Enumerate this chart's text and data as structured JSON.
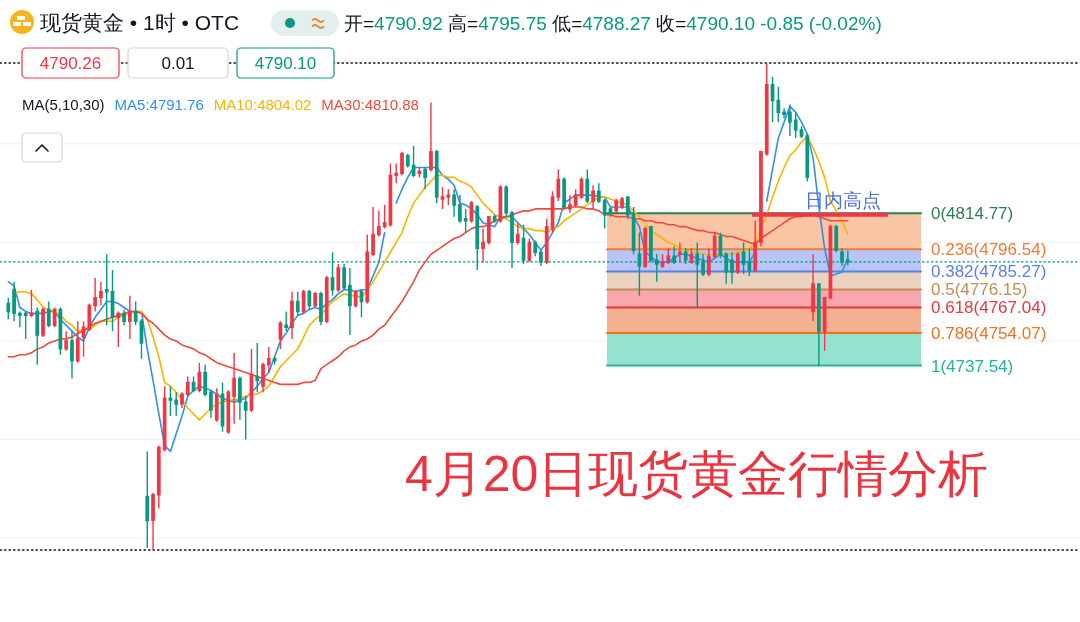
{
  "chart_data": {
    "type": "candlestick",
    "title": "4月20日现货黄金行情分析",
    "subtitle": "现货黄金 • 1时 • OTC",
    "annotations": [
      "开=4790.92 高=4795.75 低=4788.27 收=4790.10 -0.85 (-0.02%)",
      "4790.26",
      "0.01",
      "4790.10",
      "MA(5,10,30)",
      {
        "text": "日内高点",
        "y": 4814
      }
    ],
    "categories": [
      null,
      null,
      null,
      null,
      null,
      null,
      null,
      null,
      null,
      null,
      null,
      null,
      null,
      null,
      null,
      null,
      null,
      null,
      null,
      null,
      null,
      null,
      null,
      null,
      null,
      null,
      null,
      null,
      null,
      null,
      null,
      null,
      null,
      null,
      null,
      null,
      null,
      null,
      null,
      null,
      null,
      null,
      null,
      null,
      null,
      null,
      null,
      null,
      null,
      null,
      null,
      null,
      null,
      null,
      null,
      null,
      null,
      null,
      null,
      null,
      null,
      null,
      null,
      null,
      null,
      null,
      null,
      null,
      null,
      null,
      null,
      null,
      null,
      null,
      null,
      null,
      null,
      null,
      null,
      null,
      null,
      null,
      null,
      null,
      null,
      null,
      null,
      null,
      null,
      null,
      null,
      null,
      null,
      null,
      null,
      null,
      null,
      null,
      null,
      null,
      null,
      null,
      null,
      null,
      null,
      null,
      null,
      null,
      null,
      null,
      null,
      null,
      null,
      null,
      null,
      null,
      null,
      null,
      null,
      null,
      null,
      null,
      null,
      null,
      null,
      null,
      null,
      null,
      null,
      null,
      null,
      null,
      null,
      null,
      null,
      null,
      null,
      null,
      null,
      null,
      null,
      null,
      null,
      null,
      null,
      null
    ],
    "ohlc": [
      [
        4769,
        4772,
        4761,
        4765
      ],
      [
        4776,
        4780,
        4760,
        4764
      ],
      [
        4764,
        4765,
        4757,
        4763
      ],
      [
        4764,
        4765,
        4751,
        4763
      ],
      [
        4763,
        4776,
        4762,
        4764
      ],
      [
        4765,
        4767,
        4738,
        4753
      ],
      [
        4753,
        4767,
        4752,
        4766
      ],
      [
        4766,
        4770,
        4757,
        4758
      ],
      [
        4758,
        4767,
        4757,
        4766
      ],
      [
        4766,
        4767,
        4743,
        4746
      ],
      [
        4746,
        4755,
        4745,
        4750
      ],
      [
        4750,
        4755,
        4731,
        4740
      ],
      [
        4740,
        4760,
        4739,
        4751
      ],
      [
        4752,
        4760,
        4742,
        4757
      ],
      [
        4756,
        4769,
        4755,
        4768
      ],
      [
        4768,
        4782,
        4765,
        4772
      ],
      [
        4772,
        4780,
        4768,
        4775
      ],
      [
        4776,
        4794,
        4758,
        4775
      ],
      [
        4775,
        4786,
        4755,
        4762
      ],
      [
        4762,
        4765,
        4747,
        4764
      ],
      [
        4764,
        4766,
        4758,
        4760
      ],
      [
        4760,
        4773,
        4751,
        4765
      ],
      [
        4765,
        4770,
        4758,
        4760
      ],
      [
        4760,
        4761,
        4741,
        4749
      ],
      [
        4671,
        4694,
        4645,
        4659
      ],
      [
        4659,
        4673,
        4644,
        4672
      ],
      [
        4672,
        4697,
        4665,
        4696
      ],
      [
        4695,
        4727,
        4694,
        4721
      ],
      [
        4721,
        4727,
        4712,
        4720
      ],
      [
        4720,
        4724,
        4712,
        4718
      ],
      [
        4718,
        4724,
        4716,
        4723
      ],
      [
        4723,
        4732,
        4722,
        4729
      ],
      [
        4729,
        4732,
        4724,
        4725
      ],
      [
        4725,
        4739,
        4724,
        4734
      ],
      [
        4734,
        4738,
        4722,
        4723
      ],
      [
        4724,
        4725,
        4711,
        4715
      ],
      [
        4710,
        4726,
        4709,
        4723
      ],
      [
        4723,
        4729,
        4704,
        4707
      ],
      [
        4704,
        4725,
        4703,
        4724
      ],
      [
        4722,
        4744,
        4708,
        4731
      ],
      [
        4731,
        4732,
        4710,
        4719
      ],
      [
        4719,
        4722,
        4700,
        4715
      ],
      [
        4715,
        4746,
        4714,
        4733
      ],
      [
        4732,
        4749,
        4724,
        4730
      ],
      [
        4727,
        4739,
        4724,
        4738
      ],
      [
        4738,
        4747,
        4734,
        4741
      ],
      [
        4741,
        4742,
        4738,
        4740
      ],
      [
        4751,
        4760,
        4746,
        4759
      ],
      [
        4758,
        4765,
        4755,
        4757
      ],
      [
        4757,
        4775,
        4751,
        4770
      ],
      [
        4770,
        4775,
        4763,
        4765
      ],
      [
        4765,
        4776,
        4764,
        4775
      ],
      [
        4775,
        4776,
        4766,
        4768
      ],
      [
        4768,
        4775,
        4767,
        4774
      ],
      [
        4774,
        4775,
        4758,
        4760
      ],
      [
        4760,
        4783,
        4759,
        4782
      ],
      [
        4782,
        4795,
        4773,
        4776
      ],
      [
        4776,
        4789,
        4775,
        4787
      ],
      [
        4787,
        4789,
        4776,
        4777
      ],
      [
        4778,
        4787,
        4753,
        4768
      ],
      [
        4768,
        4776,
        4767,
        4775
      ],
      [
        4775,
        4776,
        4762,
        4770
      ],
      [
        4770,
        4804,
        4769,
        4795
      ],
      [
        4794,
        4818,
        4793,
        4804
      ],
      [
        4804,
        4816,
        4803,
        4808
      ],
      [
        4808,
        4819,
        4807,
        4810
      ],
      [
        4809,
        4840,
        4808,
        4834
      ],
      [
        4834,
        4840,
        4830,
        4835
      ],
      [
        4835,
        4846,
        4834,
        4845
      ],
      [
        4844,
        4845,
        4838,
        4839
      ],
      [
        4839,
        4849,
        4833,
        4834
      ],
      [
        4835,
        4838,
        4833,
        4836
      ],
      [
        4837,
        4838,
        4827,
        4833
      ],
      [
        4837,
        4871,
        4836,
        4846
      ],
      [
        4846,
        4847,
        4820,
        4823
      ],
      [
        4822,
        4828,
        4817,
        4823
      ],
      [
        4823,
        4827,
        4819,
        4824
      ],
      [
        4824,
        4827,
        4813,
        4819
      ],
      [
        4819,
        4824,
        4810,
        4811
      ],
      [
        4812,
        4817,
        4805,
        4811
      ],
      [
        4811,
        4821,
        4810,
        4820
      ],
      [
        4818,
        4819,
        4786,
        4797
      ],
      [
        4797,
        4807,
        4790,
        4800
      ],
      [
        4800,
        4813,
        4799,
        4813
      ],
      [
        4813,
        4814,
        4810,
        4811
      ],
      [
        4811,
        4829,
        4810,
        4828
      ],
      [
        4828,
        4829,
        4813,
        4815
      ],
      [
        4815,
        4816,
        4787,
        4800
      ],
      [
        4800,
        4810,
        4799,
        4804
      ],
      [
        4802,
        4809,
        4789,
        4791
      ],
      [
        4791,
        4802,
        4790,
        4800
      ],
      [
        4800,
        4801,
        4793,
        4795
      ],
      [
        4795,
        4796,
        4788,
        4790
      ],
      [
        4790,
        4812,
        4789,
        4808
      ],
      [
        4807,
        4826,
        4805,
        4823
      ],
      [
        4823,
        4837,
        4821,
        4832
      ],
      [
        4832,
        4833,
        4817,
        4818
      ],
      [
        4817,
        4824,
        4815,
        4819
      ],
      [
        4819,
        4827,
        4818,
        4824
      ],
      [
        4823,
        4833,
        4822,
        4832
      ],
      [
        4832,
        4837,
        4820,
        4821
      ],
      [
        4821,
        4829,
        4817,
        4826
      ],
      [
        4826,
        4830,
        4820,
        4821
      ],
      [
        4821,
        4822,
        4807,
        4814
      ],
      [
        4817,
        4818,
        4813,
        4815
      ],
      [
        4816,
        4822,
        4815,
        4821
      ],
      [
        4818,
        4823,
        4817,
        4822
      ],
      [
        4823,
        4823,
        4812,
        4814
      ],
      [
        4814,
        4818,
        4794,
        4796
      ],
      [
        4794,
        4805,
        4773,
        4788
      ],
      [
        4788,
        4808,
        4787,
        4807
      ],
      [
        4808,
        4808,
        4790,
        4791
      ],
      [
        4791,
        4794,
        4780,
        4789
      ],
      [
        4788,
        4794,
        4787,
        4790
      ],
      [
        4790,
        4797,
        4789,
        4793
      ],
      [
        4793,
        4798,
        4789,
        4790
      ],
      [
        4794,
        4800,
        4790,
        4795
      ],
      [
        4795,
        4797,
        4789,
        4791
      ],
      [
        4790,
        4797,
        4789,
        4794
      ],
      [
        4794,
        4800,
        4767,
        4789
      ],
      [
        4790,
        4794,
        4783,
        4784
      ],
      [
        4784,
        4797,
        4783,
        4793
      ],
      [
        4793,
        4805,
        4792,
        4803
      ],
      [
        4803,
        4805,
        4792,
        4794
      ],
      [
        4794,
        4795,
        4779,
        4785
      ],
      [
        4791,
        4795,
        4779,
        4785
      ],
      [
        4785,
        4795,
        4784,
        4794
      ],
      [
        4795,
        4800,
        4784,
        4789
      ],
      [
        4790,
        4797,
        4783,
        4786
      ],
      [
        4786,
        4811,
        4785,
        4800
      ],
      [
        4800,
        4846,
        4798,
        4846
      ],
      [
        4845,
        4891,
        4844,
        4880
      ],
      [
        4880,
        4884,
        4861,
        4872
      ],
      [
        4872,
        4879,
        4861,
        4866
      ],
      [
        4866,
        4868,
        4863,
        4865
      ],
      [
        4866,
        4870,
        4854,
        4861
      ],
      [
        4862,
        4866,
        4853,
        4857
      ],
      [
        4857,
        4859,
        4853,
        4854
      ],
      [
        4854,
        4855,
        4831,
        4833
      ],
      [
        4765,
        4794,
        4760,
        4779
      ],
      [
        4779,
        4779,
        4737.54,
        4755
      ],
      [
        4755,
        4772,
        4745,
        4772
      ],
      [
        4772,
        4809,
        4771,
        4808
      ],
      [
        4808,
        4809,
        4795,
        4796
      ],
      [
        4795,
        4797,
        4788,
        4790
      ],
      [
        4790.92,
        4795.75,
        4788.27,
        4790.1
      ]
    ],
    "colors": [
      "#089981",
      "#089981",
      "#089981",
      "#089981",
      "#f23645",
      "#089981",
      "#f23645",
      "#089981",
      "#f23645",
      "#089981",
      "#f23645",
      "#089981",
      "#f23645",
      "#f23645",
      "#f23645",
      "#f23645",
      "#f23645",
      "#089981",
      "#089981",
      "#f23645",
      "#089981",
      "#f23645",
      "#089981",
      "#089981",
      "#089981",
      "#f23645",
      "#f23645",
      "#f23645",
      "#089981",
      "#089981",
      "#f23645",
      "#f23645",
      "#089981",
      "#f23645",
      "#089981",
      "#089981",
      "#f23645",
      "#089981",
      "#f23645",
      "#f23645",
      "#089981",
      "#089981",
      "#f23645",
      "#089981",
      "#f23645",
      "#f23645",
      "#089981",
      "#f23645",
      "#089981",
      "#f23645",
      "#089981",
      "#f23645",
      "#089981",
      "#f23645",
      "#089981",
      "#f23645",
      "#089981",
      "#f23645",
      "#089981",
      "#089981",
      "#f23645",
      "#089981",
      "#f23645",
      "#f23645",
      "#f23645",
      "#f23645",
      "#f23645",
      "#f23645",
      "#f23645",
      "#089981",
      "#089981",
      "#f23645",
      "#089981",
      "#f23645",
      "#089981",
      "#f23645",
      "#f23645",
      "#089981",
      "#089981",
      "#089981",
      "#f23645",
      "#089981",
      "#f23645",
      "#f23645",
      "#089981",
      "#f23645",
      "#089981",
      "#089981",
      "#f23645",
      "#089981",
      "#f23645",
      "#089981",
      "#089981",
      "#f23645",
      "#f23645",
      "#f23645",
      "#089981",
      "#f23645",
      "#f23645",
      "#f23645",
      "#089981",
      "#f23645",
      "#089981",
      "#089981",
      "#089981",
      "#f23645",
      "#f23645",
      "#089981",
      "#089981",
      "#089981",
      "#f23645",
      "#089981",
      "#089981",
      "#f23645",
      "#f23645",
      "#089981",
      "#f23645",
      "#089981",
      "#f23645",
      "#089981",
      "#089981",
      "#f23645",
      "#f23645",
      "#089981",
      "#089981",
      "#089981",
      "#f23645",
      "#089981",
      "#089981",
      "#f23645",
      "#f23645",
      "#f23645",
      "#089981",
      "#089981",
      "#089981",
      "#089981",
      "#089981",
      "#089981",
      "#089981",
      "#f23645",
      "#089981",
      "#f23645",
      "#f23645",
      "#089981",
      "#089981",
      "#089981"
    ],
    "series": [
      {
        "type": "line",
        "name": "MA5:4791.76",
        "color": "#2f8ff0",
        "values": [
          4780,
          4778,
          4767,
          4765,
          4764,
          4764,
          4764,
          4765,
          4765,
          4761,
          4758,
          4755,
          4752,
          4750,
          4757,
          4762,
          4766,
          4770,
          4770,
          4769,
          4767,
          4765,
          4765,
          4765,
          4746,
          4730,
          4713,
          4697,
          4694,
          4703,
          4712,
          4722,
          4725,
          4727,
          4726,
          4725,
          4723,
          4721,
          4720,
          4719,
          4720,
          4721,
          4724,
          4727,
          4731,
          4734,
          4742,
          4750,
          4754,
          4759,
          4763,
          4764,
          4766,
          4767,
          4766,
          4769,
          4771,
          4774,
          4776,
          4776,
          4775,
          4776,
          4776,
          4783,
          4790,
          4805,
          null,
          4820,
          4827,
          4833,
          4838,
          4838,
          4838,
          4838,
          4838,
          4834,
          4832,
          4829,
          4820,
          4819,
          4817,
          4814,
          4810,
          4809,
          4808,
          4813,
          4813,
          4813,
          4810,
          4807,
          4804,
          4800,
          4796,
          4800,
          4805,
          4810,
          4820,
          4822,
          4824,
          4824,
          4824,
          4824,
          4823,
          4823,
          4818,
          4818,
          4818,
          4818,
          4813,
          4808,
          4795,
          4793,
          4790,
          4790,
          4790,
          4792,
          4794,
          4794,
          4793,
          4792,
          4791,
          4790,
          4792,
          4794,
          4792,
          4790,
          4790,
          4790,
          4790,
          4795,
          null,
          4821,
          4837,
          4853,
          4861,
          4869,
          4866,
          4861,
          4855,
          4843,
          4818,
          4797,
          4783,
          4784,
          4785,
          4792
        ]
      },
      {
        "type": "line",
        "name": "MA10:4804.02",
        "color": "#f7b500",
        "values": [
          null,
          4774,
          4775,
          4775,
          4774,
          4771,
          4767,
          4766,
          4765,
          4763,
          4760,
          4758,
          4755,
          4756,
          4756,
          4758,
          4760,
          4760,
          4760,
          4762,
          4763,
          4764,
          4765,
          4765,
          4761,
          4752,
          4742,
          4729,
          4727,
          4724,
          4720,
          4716,
          4713,
          4710,
          4713,
          4716,
          4718,
          4719,
          4720,
          4720,
          4721,
          4722,
          4723,
          4723,
          4725,
          4727,
          4732,
          4737,
          4740,
          4743,
          4746,
          4752,
          4758,
          4761,
          4763,
          4767,
          4770,
          4772,
          4774,
          4773,
          4773,
          4772,
          4776,
          4780,
          4785,
          4790,
          4795,
          4800,
          4805,
          4813,
          4820,
          4824,
          4828,
          4831,
          4834,
          4834,
          4833,
          4833,
          4831,
          4830,
          4828,
          4824,
          4820,
          4817,
          4814,
          4813,
          4812,
          4810,
          4808,
          4807,
          4807,
          4806,
          4806,
          4805,
          4807,
          4808,
          4811,
          4813,
          4815,
          4817,
          4819,
          4821,
          4823,
          4823,
          4822,
          4821,
          4820,
          4819,
          4816,
          4813,
          4810,
          4806,
          4804,
          4802,
          4800,
          4799,
          4797,
          4796,
          4795,
          4795,
          4794,
          4794,
          4794,
          4794,
          4794,
          4794,
          4795,
          4795,
          4797,
          4799,
          4807,
          4814,
          4823,
          4831,
          4838,
          4844,
          4847,
          4851,
          4854,
          4848,
          4841,
          4833,
          4821,
          4816,
          4811,
          4804
        ]
      },
      {
        "type": "line",
        "name": "MA30:4810.88",
        "color": "#ef4b3c",
        "values": [
          4742,
          4742,
          4743,
          4743,
          4744,
          4746,
          4747,
          4749,
          4750,
          4751,
          4751,
          4752,
          4754,
          4755,
          4757,
          4759,
          4760,
          4761,
          4762,
          4763,
          4764,
          4765,
          4765,
          4764,
          4761,
          4759,
          4756,
          4753,
          4751,
          4750,
          4748,
          4747,
          4746,
          4744,
          4743,
          4741,
          4739,
          4738,
          4737,
          4736,
          4735,
          4734,
          4733,
          4732,
          4731,
          4730,
          4729,
          4728,
          4728,
          4728,
          4728,
          4729,
          4729,
          4730,
          4736,
          4738,
          4740,
          4742,
          4745,
          4747,
          4748,
          4750,
          4751,
          4753,
          4756,
          4758,
          4762,
          4766,
          4770,
          4775,
          4780,
          4786,
          4790,
          4794,
          4796,
          4798,
          4800,
          4802,
          4803,
          4805,
          4807,
          4808,
          4808,
          4809,
          4811,
          4812,
          4813,
          4814,
          4815,
          4816,
          4816,
          4817,
          4817,
          4817,
          4817,
          4817,
          4817,
          4818,
          4818,
          4818,
          4817,
          4817,
          4816,
          4814,
          4814,
          4813,
          4813,
          4813,
          4812,
          4812,
          4811,
          4811,
          4810,
          4810,
          4809,
          4809,
          4808,
          4808,
          4807,
          4806,
          4806,
          4805,
          4805,
          4804,
          4803,
          4803,
          4802,
          4801,
          4800,
          4799,
          4802,
          4804,
          4806,
          4808,
          4810,
          4812,
          4813,
          4813,
          4814,
          4814,
          4813,
          4812,
          4811,
          4811,
          4811,
          4811
        ]
      }
    ],
    "ylim": [
      4644,
      4891
    ],
    "yticks": [
      {
        "value": 4650,
        "label": null
      },
      {
        "value": 4700,
        "label": null
      },
      {
        "value": 4750,
        "label": null
      },
      {
        "value": 4800,
        "label": null
      },
      {
        "value": 4850,
        "label": null
      }
    ],
    "grid": "y",
    "bands": [
      {
        "axis": "y",
        "from": 4796.54,
        "to": 4814.77,
        "color": "#f9c5a5"
      },
      {
        "axis": "y",
        "from": 4785.27,
        "to": 4796.54,
        "color": "#b7c6f6"
      },
      {
        "axis": "y",
        "from": 4776.15,
        "to": 4785.27,
        "color": "#ead2bf"
      },
      {
        "axis": "y",
        "from": 4767.04,
        "to": 4776.15,
        "color": "#f8a7ac"
      },
      {
        "axis": "y",
        "from": 4754.07,
        "to": 4767.04,
        "color": "#f4b191"
      },
      {
        "axis": "y",
        "from": 4737.54,
        "to": 4754.07,
        "color": "#95e3cf"
      }
    ],
    "ref_lines": [
      {
        "axis": "y",
        "value": 4814.77,
        "label": "0(4814.77)",
        "color": "#2e7d50"
      },
      {
        "axis": "y",
        "value": 4796.54,
        "label": "0.236(4796.54)",
        "color": "#f07c36"
      },
      {
        "axis": "y",
        "value": 4785.27,
        "label": "0.382(4785.27)",
        "color": "#5b7fe8"
      },
      {
        "axis": "y",
        "value": 4776.15,
        "label": "0.5(4776.15)",
        "color": "#c48a58"
      },
      {
        "axis": "y",
        "value": 4767.04,
        "label": "0.618(4767.04)",
        "color": "#e53940"
      },
      {
        "axis": "y",
        "value": 4754.07,
        "label": "0.786(4754.07)",
        "color": "#f07020"
      },
      {
        "axis": "y",
        "value": 4737.54,
        "label": "1(4737.54)",
        "color": "#1fb596"
      },
      {
        "axis": "y",
        "value": 4891,
        "color": "#131722",
        "line_style": "dotted"
      },
      {
        "axis": "y",
        "value": 4790.1,
        "color": "#089981",
        "line_style": "dotted"
      },
      {
        "axis": "y",
        "value": 4644,
        "color": "#131722",
        "line_style": "dotted"
      }
    ]
  }
}
